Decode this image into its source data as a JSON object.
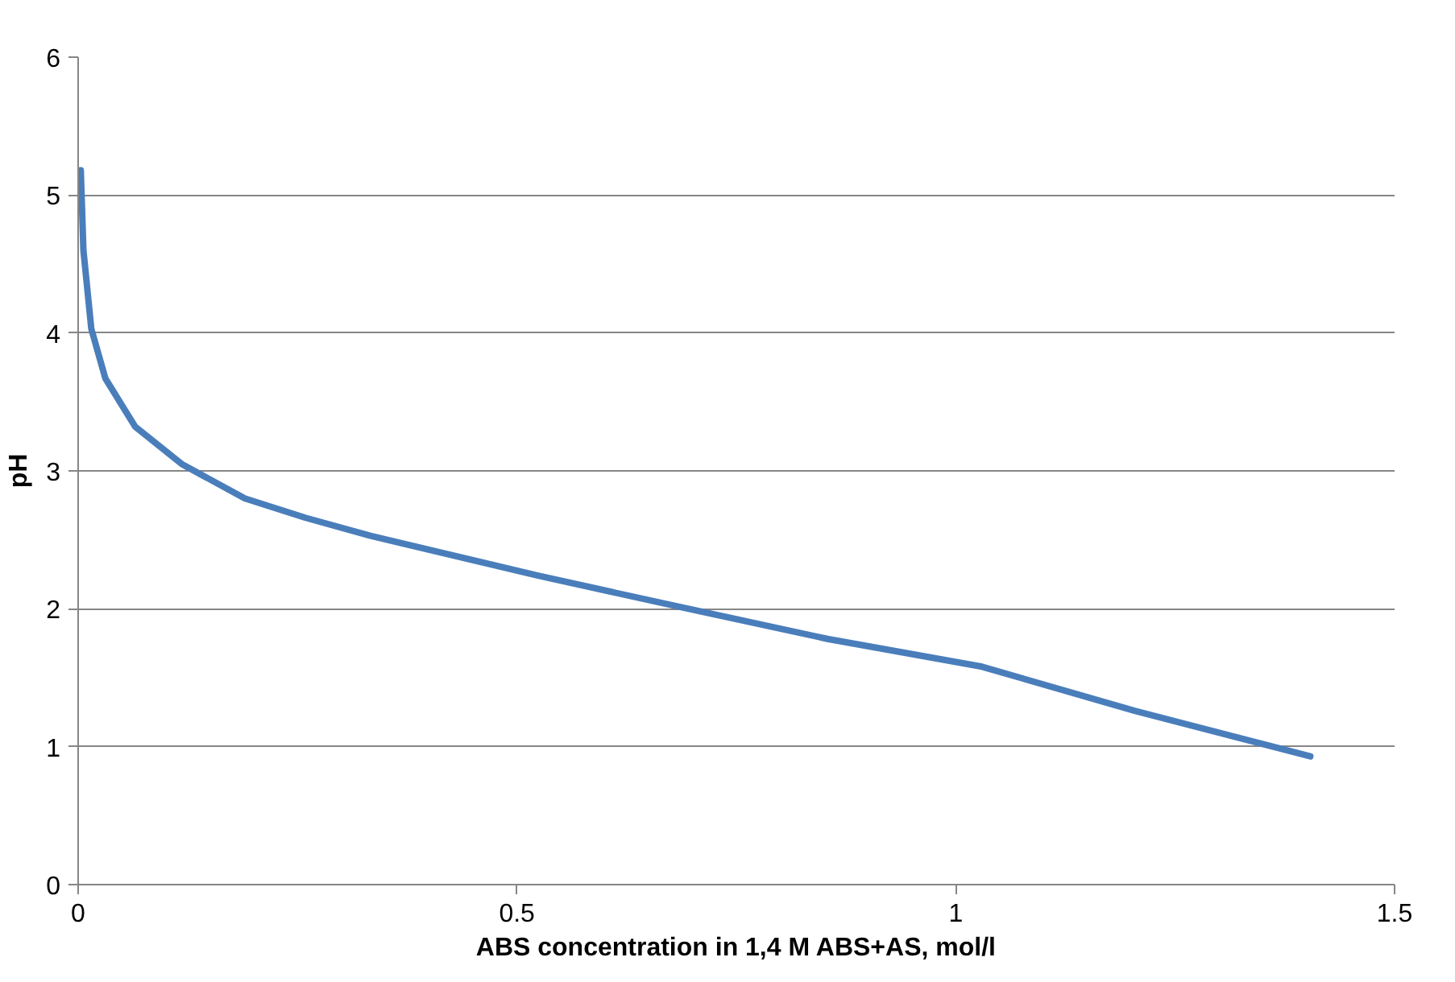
{
  "chart_data": {
    "type": "line",
    "xlabel": "ABS concentration in 1,4 M ABS+AS, mol/l",
    "ylabel": "pH",
    "xlim": [
      0,
      1.5
    ],
    "xticks": [
      0,
      0.5,
      1,
      1.5
    ],
    "ylim": [
      0,
      6
    ],
    "yticks": [
      0,
      1,
      2,
      3,
      4,
      5,
      6
    ],
    "grid": "y",
    "marker": "none",
    "line_style": "solid",
    "series": [
      {
        "color": "#4a7ebb",
        "x": [
          0.003,
          0.006,
          0.015,
          0.031,
          0.065,
          0.118,
          0.19,
          0.259,
          0.333,
          0.524,
          0.681,
          0.855,
          1.03,
          1.204,
          1.404
        ],
        "values": [
          5.18,
          4.6,
          4.03,
          3.67,
          3.32,
          3.05,
          2.8,
          2.66,
          2.53,
          2.24,
          2.02,
          1.78,
          1.58,
          1.26,
          0.93
        ]
      }
    ]
  }
}
